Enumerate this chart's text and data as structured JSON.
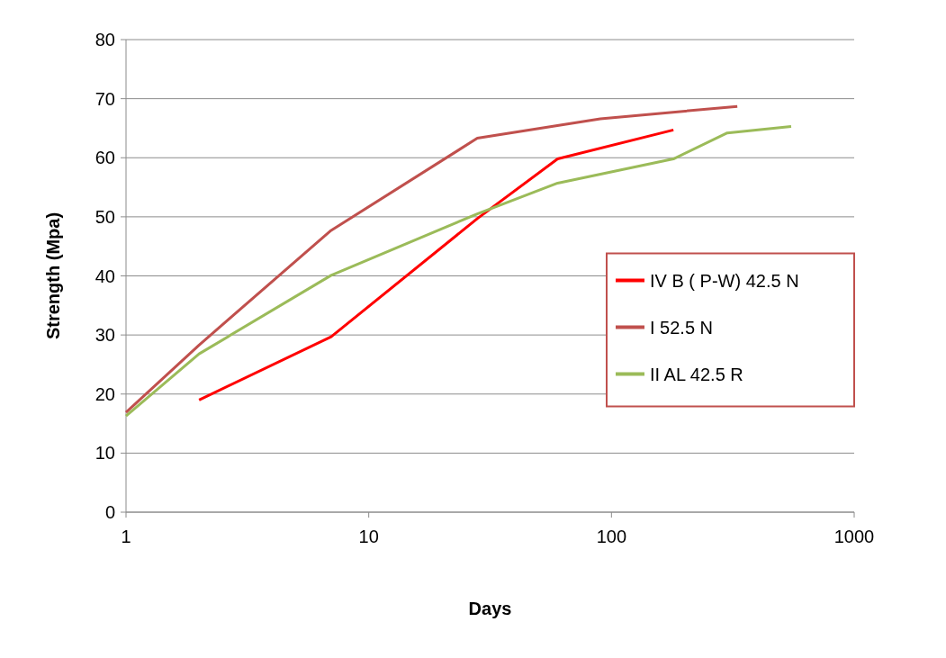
{
  "chart_data": {
    "type": "line",
    "xlabel": "Days",
    "ylabel": "Strength (Mpa)",
    "log": "x",
    "xlim": [
      1,
      1000
    ],
    "xticks": [
      1,
      10,
      100,
      1000
    ],
    "ylim": [
      0,
      80
    ],
    "yticks": [
      0,
      10,
      20,
      30,
      40,
      50,
      60,
      70,
      80
    ],
    "grid": "y",
    "legend": "right",
    "marker": "none",
    "line_style": "solid",
    "series": [
      {
        "name": "IV B ( P-W) 42.5 N",
        "color": "#ff0000",
        "x": [
          2,
          7,
          28,
          60,
          180
        ],
        "values": [
          19,
          29.7,
          49.7,
          59.8,
          64.7
        ]
      },
      {
        "name": "I 52.5 N",
        "color": "#c0504d",
        "x": [
          1,
          2,
          7,
          28,
          90,
          330
        ],
        "values": [
          16.9,
          28.3,
          47.7,
          63.3,
          66.6,
          68.7
        ]
      },
      {
        "name": "II AL 42.5 R",
        "color": "#9bbb59",
        "x": [
          1,
          2,
          7,
          28,
          60,
          180,
          300,
          550
        ],
        "values": [
          16.3,
          26.8,
          40.1,
          50.5,
          55.7,
          59.8,
          64.2,
          65.3
        ]
      }
    ]
  }
}
